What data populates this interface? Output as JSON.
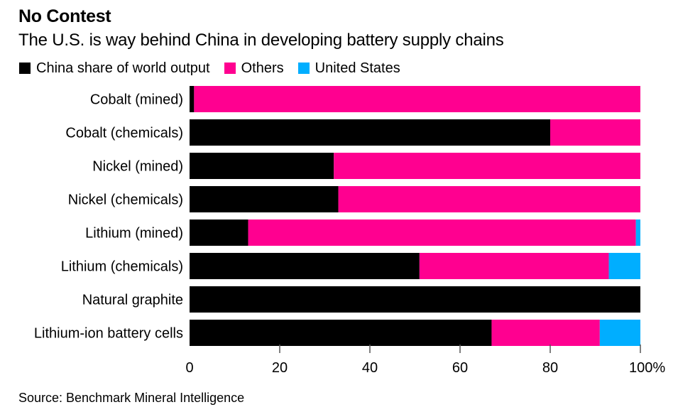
{
  "chart_data": {
    "type": "bar",
    "orientation": "horizontal",
    "stacked": true,
    "title": "No Contest",
    "subtitle": "The U.S. is way behind China in developing battery supply chains",
    "categories": [
      "Cobalt (mined)",
      "Cobalt (chemicals)",
      "Nickel (mined)",
      "Nickel (chemicals)",
      "Lithium (mined)",
      "Lithium (chemicals)",
      "Natural graphite",
      "Lithium-ion battery cells"
    ],
    "series": [
      {
        "name": "China share of world output",
        "color": "#000000",
        "values": [
          1,
          80,
          32,
          33,
          13,
          51,
          100,
          67
        ]
      },
      {
        "name": "Others",
        "color": "#ff0090",
        "values": [
          99,
          20,
          68,
          67,
          86,
          42,
          0,
          24
        ]
      },
      {
        "name": "United States",
        "color": "#00aeff",
        "values": [
          0,
          0,
          0,
          0,
          1,
          7,
          0,
          9
        ]
      }
    ],
    "xlabel": "",
    "ylabel": "",
    "xlim": [
      0,
      100
    ],
    "xticks": [
      0,
      20,
      40,
      60,
      80,
      100
    ],
    "xtick_labels": [
      "0",
      "20",
      "40",
      "60",
      "80",
      "100%"
    ],
    "grid": false,
    "legend": {
      "placement": "top-left"
    },
    "source": "Source: Benchmark Mineral Intelligence"
  }
}
